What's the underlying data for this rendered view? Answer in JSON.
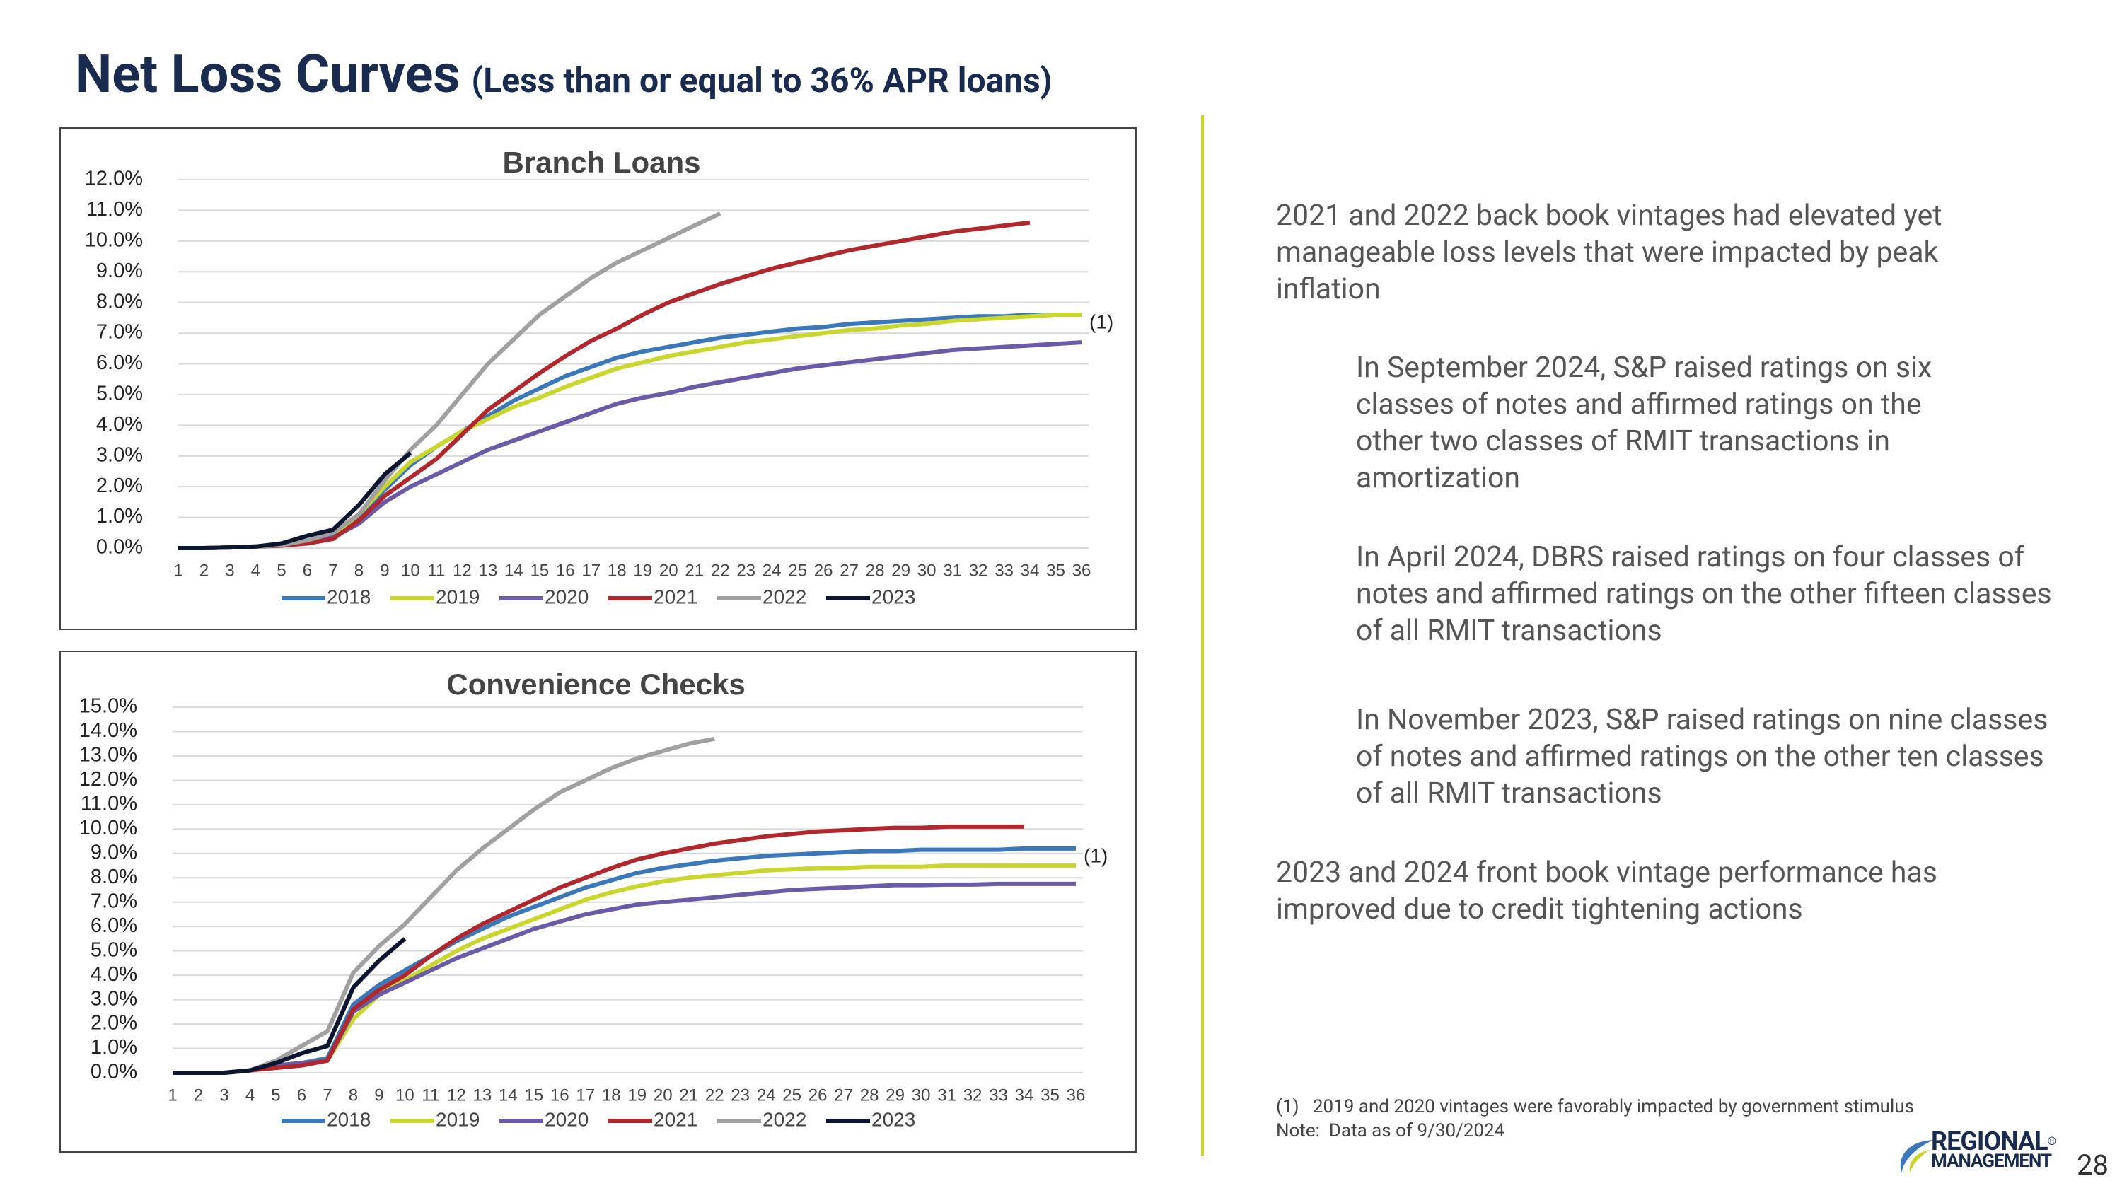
{
  "header": {
    "title": "Net Loss Curves",
    "subtitle": "(Less than or equal to 36% APR loans)"
  },
  "chart_data": [
    {
      "type": "line",
      "title": "Branch Loans",
      "annotation": "(1)",
      "categories": [
        1,
        2,
        3,
        4,
        5,
        6,
        7,
        8,
        9,
        10,
        11,
        12,
        13,
        14,
        15,
        16,
        17,
        18,
        19,
        20,
        21,
        22,
        23,
        24,
        25,
        26,
        27,
        28,
        29,
        30,
        31,
        32,
        33,
        34,
        35,
        36
      ],
      "ylim": [
        0,
        12
      ],
      "yticks": [
        {
          "value": 0,
          "label": "0.0%"
        },
        {
          "value": 1,
          "label": "1.0%"
        },
        {
          "value": 2,
          "label": "2.0%"
        },
        {
          "value": 3,
          "label": "3.0%"
        },
        {
          "value": 4,
          "label": "4.0%"
        },
        {
          "value": 5,
          "label": "5.0%"
        },
        {
          "value": 6,
          "label": "6.0%"
        },
        {
          "value": 7,
          "label": "7.0%"
        },
        {
          "value": 8,
          "label": "8.0%"
        },
        {
          "value": 9,
          "label": "9.0%"
        },
        {
          "value": 10,
          "label": "10.0%"
        },
        {
          "value": 11,
          "label": "11.0%"
        },
        {
          "value": 12,
          "label": "12.0%"
        }
      ],
      "grid": true,
      "legend": "bottom",
      "series": [
        {
          "name": "2018",
          "color": "#3a78b9",
          "values": [
            0,
            0,
            0.02,
            0.05,
            0.1,
            0.2,
            0.4,
            1.0,
            1.9,
            2.7,
            3.3,
            3.8,
            4.3,
            4.8,
            5.2,
            5.6,
            5.9,
            6.2,
            6.4,
            6.55,
            6.7,
            6.85,
            6.95,
            7.05,
            7.15,
            7.2,
            7.3,
            7.35,
            7.4,
            7.45,
            7.5,
            7.55,
            7.55,
            7.6,
            7.6,
            7.6
          ]
        },
        {
          "name": "2019",
          "color": "#c9d62d",
          "values": [
            0,
            0,
            0.02,
            0.05,
            0.1,
            0.2,
            0.4,
            1.1,
            2.0,
            2.8,
            3.3,
            3.8,
            4.2,
            4.6,
            4.9,
            5.25,
            5.55,
            5.85,
            6.05,
            6.25,
            6.4,
            6.55,
            6.7,
            6.8,
            6.9,
            7.0,
            7.1,
            7.15,
            7.25,
            7.3,
            7.4,
            7.45,
            7.5,
            7.55,
            7.6,
            7.6
          ]
        },
        {
          "name": "2020",
          "color": "#6a5aa8",
          "values": [
            0,
            0,
            0.02,
            0.05,
            0.1,
            0.2,
            0.35,
            0.8,
            1.5,
            2.0,
            2.4,
            2.8,
            3.2,
            3.5,
            3.8,
            4.1,
            4.4,
            4.7,
            4.9,
            5.05,
            5.25,
            5.4,
            5.55,
            5.7,
            5.85,
            5.95,
            6.05,
            6.15,
            6.25,
            6.35,
            6.45,
            6.5,
            6.55,
            6.6,
            6.65,
            6.7
          ]
        },
        {
          "name": "2021",
          "color": "#b0282d",
          "values": [
            0,
            0,
            0.02,
            0.05,
            0.08,
            0.15,
            0.3,
            0.9,
            1.7,
            2.3,
            2.9,
            3.7,
            4.5,
            5.1,
            5.7,
            6.25,
            6.75,
            7.15,
            7.6,
            8.0,
            8.3,
            8.6,
            8.85,
            9.1,
            9.3,
            9.5,
            9.7,
            9.85,
            10.0,
            10.15,
            10.3,
            10.4,
            10.5,
            10.6,
            null,
            null
          ]
        },
        {
          "name": "2022",
          "color": "#a0a0a0",
          "values": [
            0,
            0,
            0.02,
            0.05,
            0.1,
            0.25,
            0.5,
            1.1,
            2.2,
            3.2,
            4.0,
            5.0,
            6.0,
            6.8,
            7.6,
            8.2,
            8.8,
            9.3,
            9.7,
            10.1,
            10.5,
            10.9,
            null,
            null,
            null,
            null,
            null,
            null,
            null,
            null,
            null,
            null,
            null,
            null,
            null,
            null
          ]
        },
        {
          "name": "2023",
          "color": "#0d1630",
          "values": [
            0,
            0,
            0.02,
            0.05,
            0.15,
            0.4,
            0.6,
            1.4,
            2.4,
            3.1,
            null,
            null,
            null,
            null,
            null,
            null,
            null,
            null,
            null,
            null,
            null,
            null,
            null,
            null,
            null,
            null,
            null,
            null,
            null,
            null,
            null,
            null,
            null,
            null,
            null,
            null
          ]
        }
      ]
    },
    {
      "type": "line",
      "title": "Convenience Checks",
      "annotation": "(1)",
      "categories": [
        1,
        2,
        3,
        4,
        5,
        6,
        7,
        8,
        9,
        10,
        11,
        12,
        13,
        14,
        15,
        16,
        17,
        18,
        19,
        20,
        21,
        22,
        23,
        24,
        25,
        26,
        27,
        28,
        29,
        30,
        31,
        32,
        33,
        34,
        35,
        36
      ],
      "ylim": [
        0,
        15
      ],
      "yticks": [
        {
          "value": 0,
          "label": "0.0%"
        },
        {
          "value": 1,
          "label": "1.0%"
        },
        {
          "value": 2,
          "label": "2.0%"
        },
        {
          "value": 3,
          "label": "3.0%"
        },
        {
          "value": 4,
          "label": "4.0%"
        },
        {
          "value": 5,
          "label": "5.0%"
        },
        {
          "value": 6,
          "label": "6.0%"
        },
        {
          "value": 7,
          "label": "7.0%"
        },
        {
          "value": 8,
          "label": "8.0%"
        },
        {
          "value": 9,
          "label": "9.0%"
        },
        {
          "value": 10,
          "label": "10.0%"
        },
        {
          "value": 11,
          "label": "11.0%"
        },
        {
          "value": 12,
          "label": "12.0%"
        },
        {
          "value": 13,
          "label": "13.0%"
        },
        {
          "value": 14,
          "label": "14.0%"
        },
        {
          "value": 15,
          "label": "15.0%"
        }
      ],
      "grid": true,
      "legend": "bottom",
      "series": [
        {
          "name": "2018",
          "color": "#3a78b9",
          "values": [
            0,
            0,
            0,
            0.1,
            0.3,
            0.4,
            0.6,
            2.8,
            3.6,
            4.2,
            4.8,
            5.4,
            5.9,
            6.4,
            6.8,
            7.2,
            7.6,
            7.9,
            8.2,
            8.4,
            8.55,
            8.7,
            8.8,
            8.9,
            8.95,
            9.0,
            9.05,
            9.1,
            9.1,
            9.15,
            9.15,
            9.15,
            9.15,
            9.2,
            9.2,
            9.2
          ]
        },
        {
          "name": "2019",
          "color": "#c9d62d",
          "values": [
            0,
            0,
            0,
            0.1,
            0.3,
            0.4,
            0.5,
            2.2,
            3.2,
            3.8,
            4.4,
            5.0,
            5.5,
            5.9,
            6.3,
            6.7,
            7.1,
            7.4,
            7.65,
            7.85,
            8.0,
            8.1,
            8.2,
            8.3,
            8.35,
            8.4,
            8.4,
            8.45,
            8.45,
            8.45,
            8.5,
            8.5,
            8.5,
            8.5,
            8.5,
            8.5
          ]
        },
        {
          "name": "2020",
          "color": "#6a5aa8",
          "values": [
            0,
            0,
            0,
            0.1,
            0.3,
            0.4,
            0.5,
            2.5,
            3.2,
            3.7,
            4.2,
            4.7,
            5.1,
            5.5,
            5.9,
            6.2,
            6.5,
            6.7,
            6.9,
            7.0,
            7.1,
            7.2,
            7.3,
            7.4,
            7.5,
            7.55,
            7.6,
            7.65,
            7.7,
            7.7,
            7.72,
            7.72,
            7.75,
            7.75,
            7.75,
            7.75
          ]
        },
        {
          "name": "2021",
          "color": "#b0282d",
          "values": [
            0,
            0,
            0,
            0.1,
            0.2,
            0.3,
            0.5,
            2.6,
            3.4,
            4.0,
            4.8,
            5.5,
            6.1,
            6.6,
            7.1,
            7.6,
            8.0,
            8.4,
            8.75,
            9.0,
            9.2,
            9.4,
            9.55,
            9.7,
            9.8,
            9.9,
            9.95,
            10.0,
            10.05,
            10.05,
            10.1,
            10.1,
            10.1,
            10.1,
            null,
            null
          ]
        },
        {
          "name": "2022",
          "color": "#a0a0a0",
          "values": [
            0,
            0,
            0,
            0.1,
            0.5,
            1.1,
            1.7,
            4.1,
            5.2,
            6.1,
            7.2,
            8.3,
            9.2,
            10.0,
            10.8,
            11.5,
            12.0,
            12.5,
            12.9,
            13.2,
            13.5,
            13.7,
            null,
            null,
            null,
            null,
            null,
            null,
            null,
            null,
            null,
            null,
            null,
            null,
            null,
            null
          ]
        },
        {
          "name": "2023",
          "color": "#0d1630",
          "values": [
            0,
            0,
            0,
            0.1,
            0.4,
            0.8,
            1.1,
            3.5,
            4.6,
            5.5,
            null,
            null,
            null,
            null,
            null,
            null,
            null,
            null,
            null,
            null,
            null,
            null,
            null,
            null,
            null,
            null,
            null,
            null,
            null,
            null,
            null,
            null,
            null,
            null,
            null,
            null
          ]
        }
      ]
    }
  ],
  "bullets": [
    "2021 and 2022 back book vintages had elevated yet manageable loss levels that were impacted by peak inflation",
    "In September 2024, S&P raised ratings on six classes of notes and affirmed ratings on the other two classes of RMIT transactions in amortization",
    "In April 2024, DBRS raised ratings on four classes of notes and affirmed ratings on the other fifteen classes of all RMIT transactions",
    "In November 2023, S&P raised ratings on nine classes of notes and affirmed ratings on the other ten classes of all RMIT transactions",
    "2023 and 2024 front book vintage performance has improved due to credit tightening actions"
  ],
  "footnotes": [
    "(1)   2019 and 2020 vintages were favorably impacted by government stimulus",
    "Note:  Data as of 9/30/2024"
  ],
  "logo": {
    "line1": "REGIONAL",
    "mark": "®",
    "line2": "MANAGEMENT"
  },
  "page_number": "28"
}
